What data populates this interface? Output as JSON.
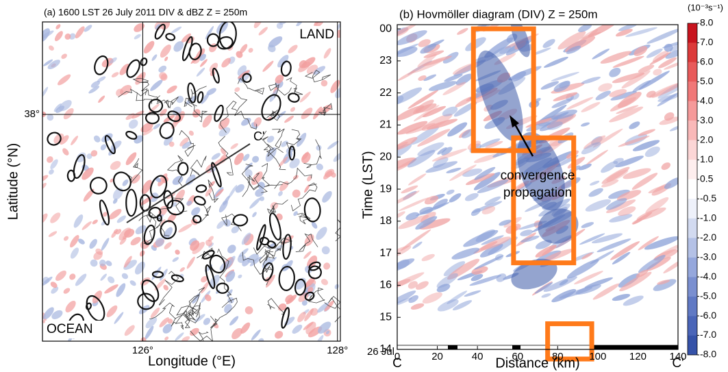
{
  "chart_data": [
    {
      "type": "map",
      "title": "(a) 1600 LST 26 July 2011  DIV & dBZ   Z = 250m",
      "x_label": "Longitude (°E)",
      "y_label": "Latitude (°N)",
      "xlim": [
        124.97,
        128.03
      ],
      "ylim": [
        36.16,
        38.75
      ],
      "xticks": [
        {
          "value": 126,
          "label": "126°"
        },
        {
          "value": 128,
          "label": "128°"
        }
      ],
      "yticks": [
        {
          "value": 38,
          "label": "38°"
        }
      ],
      "annotations": [
        "LAND",
        "OCEAN",
        "C'"
      ]
    },
    {
      "type": "heatmap",
      "title": "(b)  Hovmöller diagram (DIV)    Z = 250m",
      "x_label": "Distance (km)",
      "y_label": "Time (LST)",
      "xlim": [
        0,
        140
      ],
      "ylim": [
        14,
        24.13
      ],
      "xticks": [
        0,
        20,
        40,
        60,
        80,
        100,
        120,
        140
      ],
      "yticks": [
        14,
        15,
        16,
        17,
        18,
        19,
        20,
        21,
        22,
        23,
        {
          "value": 24,
          "label": "00"
        }
      ],
      "date_label": "26 Jul",
      "x_start_label": "C",
      "x_end_label": "C'",
      "annotation": [
        "convergence",
        "propagation"
      ],
      "highlight_boxes": [
        {
          "x": [
            38,
            68
          ],
          "y": [
            20.2,
            24
          ]
        },
        {
          "x": [
            58,
            88
          ],
          "y": [
            16.7,
            20.6
          ]
        },
        {
          "x": [
            75,
            97
          ],
          "y": [
            13.7,
            14.8
          ]
        }
      ],
      "box_color": "#ff7a1a",
      "colorbar": {
        "unit": "(10⁻³s⁻¹)",
        "ticks": [
          {
            "value": 8,
            "label": "8.0"
          },
          {
            "value": 7,
            "label": "7.0"
          },
          {
            "value": 6,
            "label": "6.0"
          },
          {
            "value": 5,
            "label": "5.0"
          },
          {
            "value": 4,
            "label": "4.0"
          },
          {
            "value": 3,
            "label": "3.0"
          },
          {
            "value": 2,
            "label": "2.0"
          },
          {
            "value": 1,
            "label": "1.0"
          },
          0.5,
          -0.5,
          {
            "value": -1,
            "label": "-1.0"
          },
          {
            "value": -2,
            "label": "-2.0"
          },
          {
            "value": -3,
            "label": "-3.0"
          },
          {
            "value": -4,
            "label": "-4.0"
          },
          {
            "value": -5,
            "label": "-5.0"
          },
          {
            "value": -6,
            "label": "-6.0"
          },
          {
            "value": -7,
            "label": "-7.0"
          },
          {
            "value": -8,
            "label": "-8.0"
          }
        ]
      }
    }
  ]
}
